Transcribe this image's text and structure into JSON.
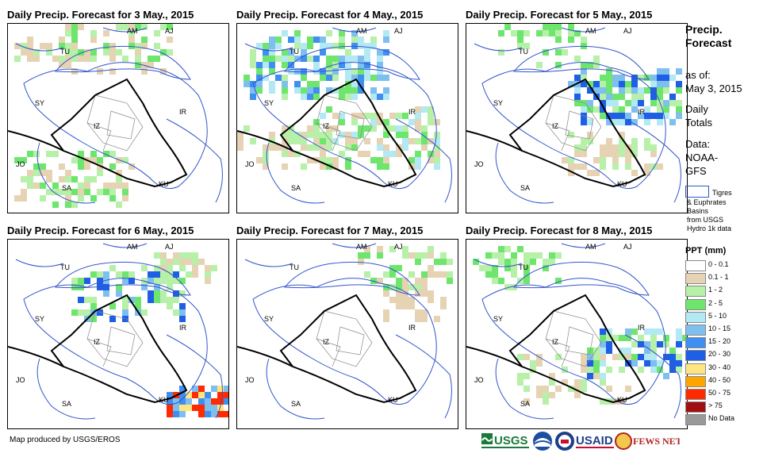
{
  "panels": [
    {
      "title": "Daily Precip. Forecast for 3 May., 2015"
    },
    {
      "title": "Daily Precip. Forecast for 4 May., 2015"
    },
    {
      "title": "Daily Precip. Forecast for 5 May., 2015"
    },
    {
      "title": "Daily Precip. Forecast for 6 May., 2015"
    },
    {
      "title": "Daily Precip. Forecast for 7 May., 2015"
    },
    {
      "title": "Daily Precip. Forecast for 8 May., 2015"
    }
  ],
  "map_labels": {
    "am": "AM",
    "aj": "AJ",
    "tu": "TU",
    "sy": "SY",
    "ir": "IR",
    "iz": "IZ",
    "jo": "JO",
    "sa": "SA",
    "ku": "KU"
  },
  "sidebar": {
    "title_line1": "Precip.",
    "title_line2": "Forecast",
    "asof_line1": "as of:",
    "asof_line2": "May 3, 2015",
    "daily_line1": "Daily",
    "daily_line2": "Totals",
    "data_line1": "Data:",
    "data_line2": "NOAA-",
    "data_line3": "GFS",
    "basin_line1": "Tigres",
    "basin_line2": "& Euphrates",
    "basin_line3": "Basins",
    "basin_line4": "from USGS",
    "basin_line5": "Hydro 1k data"
  },
  "legend": {
    "title": "PPT (mm)",
    "items": [
      {
        "label": "0 - 0.1",
        "color": "#ffffff"
      },
      {
        "label": "0.1 - 1",
        "color": "#e6d3b3"
      },
      {
        "label": "1 - 2",
        "color": "#b7f0a8"
      },
      {
        "label": "2 - 5",
        "color": "#6ee66e"
      },
      {
        "label": "5 - 10",
        "color": "#b3e8f5"
      },
      {
        "label": "10 - 15",
        "color": "#7fbff0"
      },
      {
        "label": "15 - 20",
        "color": "#3f8ff0"
      },
      {
        "label": "20 - 30",
        "color": "#1f5fe6"
      },
      {
        "label": "30 - 40",
        "color": "#ffe680"
      },
      {
        "label": "40 - 50",
        "color": "#ffa500"
      },
      {
        "label": "50 - 75",
        "color": "#ff2a00"
      },
      {
        "label": "> 75",
        "color": "#a01010"
      },
      {
        "label": "No Data",
        "color": "#999999"
      }
    ]
  },
  "footer": {
    "credit": "Map produced by USGS/EROS"
  },
  "logos": [
    {
      "text": "USGS",
      "icon": "usgs-logo"
    },
    {
      "text": "",
      "icon": "noaa-logo"
    },
    {
      "text": "",
      "icon": "usaid-seal"
    },
    {
      "text": "USAID",
      "icon": "usaid-logo"
    },
    {
      "text": "FEWS NET",
      "icon": "fewsnet-logo"
    }
  ],
  "colors": {
    "basin": "#3355cc",
    "border": "#000000",
    "admin": "#888888"
  }
}
